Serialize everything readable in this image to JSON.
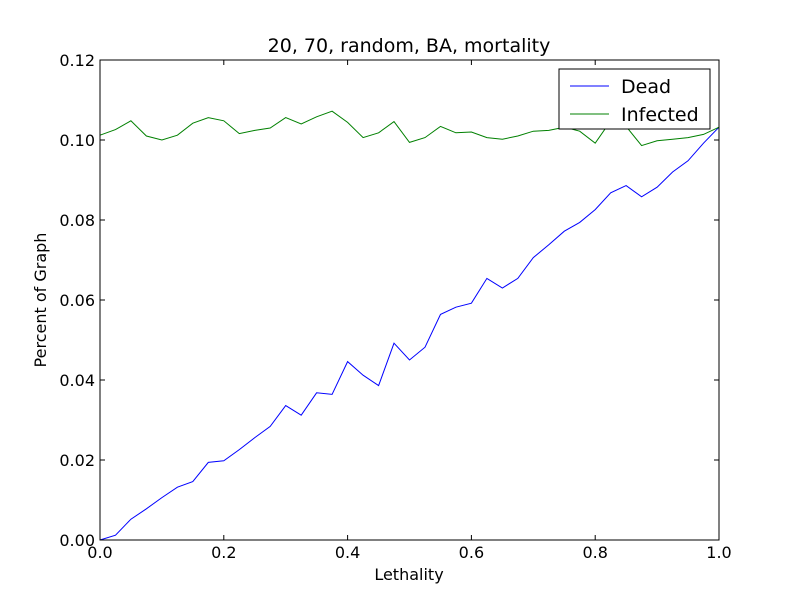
{
  "chart_data": {
    "type": "line",
    "title": "20, 70, random, BA, mortality",
    "xlabel": "Lethality",
    "ylabel": "Percent of Graph",
    "xlim": [
      0.0,
      1.0
    ],
    "ylim": [
      0.0,
      0.12
    ],
    "x_ticks": [
      "0.0",
      "0.2",
      "0.4",
      "0.6",
      "0.8",
      "1.0"
    ],
    "y_ticks": [
      "0.00",
      "0.02",
      "0.04",
      "0.06",
      "0.08",
      "0.10",
      "0.12"
    ],
    "grid": false,
    "legend_position": "top-right",
    "x": [
      0.0,
      0.025,
      0.05,
      0.075,
      0.1,
      0.125,
      0.15,
      0.175,
      0.2,
      0.225,
      0.25,
      0.275,
      0.3,
      0.325,
      0.35,
      0.375,
      0.4,
      0.425,
      0.45,
      0.475,
      0.5,
      0.525,
      0.55,
      0.575,
      0.6,
      0.625,
      0.65,
      0.675,
      0.7,
      0.725,
      0.75,
      0.775,
      0.8,
      0.825,
      0.85,
      0.875,
      0.9,
      0.925,
      0.95,
      0.975,
      1.0
    ],
    "series": [
      {
        "name": "Dead",
        "color": "#0000ff",
        "values": [
          0.0,
          0.0012,
          0.0052,
          0.0078,
          0.0106,
          0.0132,
          0.0146,
          0.0194,
          0.0198,
          0.0226,
          0.0256,
          0.0284,
          0.0336,
          0.0312,
          0.0368,
          0.0364,
          0.0446,
          0.0412,
          0.0386,
          0.0492,
          0.045,
          0.0482,
          0.0564,
          0.0582,
          0.0592,
          0.0654,
          0.063,
          0.0654,
          0.0706,
          0.0738,
          0.0772,
          0.0794,
          0.0826,
          0.0868,
          0.0886,
          0.0858,
          0.0882,
          0.092,
          0.0948,
          0.0992,
          0.1032
        ]
      },
      {
        "name": "Infected",
        "color": "#008000",
        "values": [
          0.1012,
          0.1026,
          0.1048,
          0.101,
          0.1,
          0.1012,
          0.1042,
          0.1056,
          0.1048,
          0.1016,
          0.1024,
          0.103,
          0.1056,
          0.104,
          0.1058,
          0.1072,
          0.1044,
          0.1006,
          0.1018,
          0.1046,
          0.0994,
          0.1006,
          0.1034,
          0.1018,
          0.102,
          0.1006,
          0.1002,
          0.101,
          0.1022,
          0.1024,
          0.1032,
          0.1022,
          0.0992,
          0.1048,
          0.1034,
          0.0986,
          0.0998,
          0.1002,
          0.1006,
          0.1014,
          0.1032
        ]
      }
    ]
  }
}
